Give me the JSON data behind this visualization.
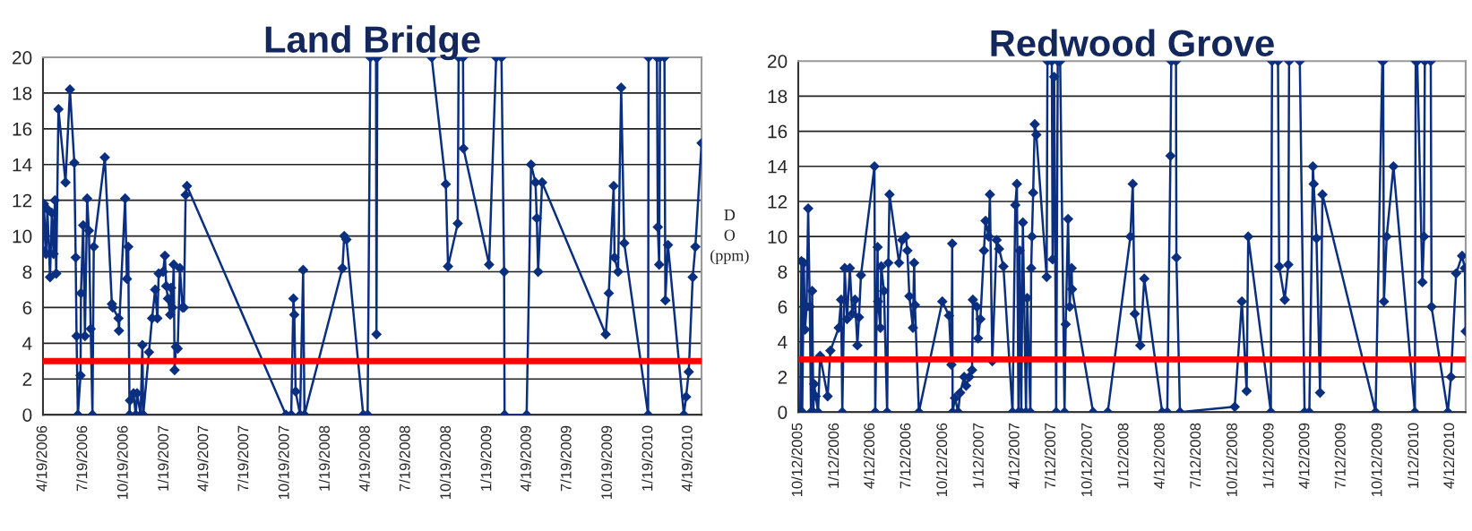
{
  "chart_data": [
    {
      "type": "line",
      "title": "Land Bridge",
      "marker": "diamond",
      "grid": "y",
      "line_style": "solid",
      "xlim": [
        "2006-04-19",
        "2010-05-19"
      ],
      "ylim": [
        0,
        20
      ],
      "yticks": [
        0,
        2,
        4,
        6,
        8,
        10,
        12,
        14,
        16,
        18,
        20
      ],
      "xticks": [
        {
          "value": "2006-04-19",
          "label": "4/19/2006"
        },
        {
          "value": "2006-07-19",
          "label": "7/19/2006"
        },
        {
          "value": "2006-10-19",
          "label": "10/19/2006"
        },
        {
          "value": "2007-01-19",
          "label": "1/19/2007"
        },
        {
          "value": "2007-04-19",
          "label": "4/19/2007"
        },
        {
          "value": "2007-07-19",
          "label": "7/19/2007"
        },
        {
          "value": "2007-10-19",
          "label": "10/19/2007"
        },
        {
          "value": "2008-01-19",
          "label": "1/19/2008"
        },
        {
          "value": "2008-04-19",
          "label": "4/19/2008"
        },
        {
          "value": "2008-07-19",
          "label": "7/19/2008"
        },
        {
          "value": "2008-10-19",
          "label": "10/19/2008"
        },
        {
          "value": "2009-01-19",
          "label": "1/19/2009"
        },
        {
          "value": "2009-04-19",
          "label": "4/19/2009"
        },
        {
          "value": "2009-07-19",
          "label": "7/19/2009"
        },
        {
          "value": "2009-10-19",
          "label": "10/19/2009"
        },
        {
          "value": "2010-01-19",
          "label": "1/19/2010"
        },
        {
          "value": "2010-04-19",
          "label": "4/19/2010"
        }
      ],
      "ref_lines": [
        {
          "axis": "y",
          "value": 3,
          "color": "#ff0000"
        }
      ],
      "x": [
        "2006-04-19",
        "2006-04-21",
        "2006-04-26",
        "2006-04-29",
        "2006-05-05",
        "2006-05-09",
        "2006-05-13",
        "2006-05-16",
        "2006-05-19",
        "2006-05-24",
        "2006-06-09",
        "2006-06-19",
        "2006-06-29",
        "2006-07-02",
        "2006-07-04",
        "2006-07-07",
        "2006-07-13",
        "2006-07-14",
        "2006-07-19",
        "2006-07-23",
        "2006-07-28",
        "2006-08-01",
        "2006-08-05",
        "2006-08-09",
        "2006-08-12",
        "2006-09-06",
        "2006-09-22",
        "2006-09-24",
        "2006-10-07",
        "2006-10-08",
        "2006-10-22",
        "2006-10-26",
        "2006-10-29",
        "2006-11-01",
        "2006-11-02",
        "2006-11-10",
        "2006-11-15",
        "2006-11-18",
        "2006-11-26",
        "2006-11-30",
        "2006-12-02",
        "2006-12-15",
        "2006-12-22",
        "2006-12-29",
        "2007-01-03",
        "2007-01-06",
        "2007-01-16",
        "2007-01-20",
        "2007-01-23",
        "2007-01-27",
        "2007-02-01",
        "2007-02-03",
        "2007-02-06",
        "2007-02-09",
        "2007-02-11",
        "2007-02-14",
        "2007-02-18",
        "2007-02-23",
        "2007-03-01",
        "2007-03-04",
        "2007-03-08",
        "2007-03-11",
        "2007-10-21",
        "2007-11-02",
        "2007-11-07",
        "2007-11-09",
        "2007-11-12",
        "2007-11-22",
        "2007-11-29",
        "2007-12-02",
        "2008-02-26",
        "2008-03-01",
        "2008-03-06",
        "2008-04-13",
        "2008-04-23",
        "2008-04-29",
        "2008-05-05",
        "2008-05-12",
        "2008-05-13",
        "2008-05-15",
        "2008-07-01",
        "2008-09-15",
        "2008-10-17",
        "2008-10-22",
        "2008-11-13",
        "2008-11-15",
        "2008-11-20",
        "2008-11-25",
        "2008-11-26",
        "2009-01-23",
        "2009-02-08",
        "2009-02-14",
        "2009-02-20",
        "2009-02-26",
        "2009-02-27",
        "2009-04-18",
        "2009-04-28",
        "2009-05-08",
        "2009-05-11",
        "2009-05-14",
        "2009-05-23",
        "2009-10-14",
        "2009-10-21",
        "2009-11-01",
        "2009-11-03",
        "2009-11-11",
        "2009-11-18",
        "2009-11-25",
        "2010-01-18",
        "2010-01-19",
        "2010-02-01",
        "2010-02-07",
        "2010-02-09",
        "2010-02-12",
        "2010-02-14",
        "2010-02-19",
        "2010-02-24",
        "2010-02-26",
        "2010-03-04",
        "2010-04-09",
        "2010-04-14",
        "2010-04-20",
        "2010-04-29",
        "2010-05-05",
        "2010-05-19"
      ],
      "series": [
        {
          "color": "#0b2f80",
          "values": [
            9.2,
            11.8,
            9.0,
            11.5,
            7.7,
            11.3,
            9.0,
            12.0,
            7.9,
            17.1,
            13.0,
            18.2,
            14.1,
            8.8,
            4.4,
            0,
            2.2,
            6.8,
            10.6,
            4.4,
            12.1,
            10.3,
            4.8,
            0,
            9.4,
            14.4,
            6.2,
            6.0,
            5.4,
            4.7,
            12.1,
            7.6,
            9.4,
            0,
            0.8,
            1.2,
            0,
            1.2,
            0,
            3.9,
            0,
            3.5,
            5.4,
            7.0,
            5.4,
            7.9,
            8.0,
            8.9,
            7.2,
            6.5,
            5.6,
            7.1,
            6.0,
            8.4,
            2.5,
            3.8,
            3.7,
            8.2,
            6.0,
            6.0,
            12.3,
            12.8,
            0,
            0,
            6.5,
            5.6,
            1.3,
            0,
            8.1,
            0,
            8.2,
            10.0,
            9.8,
            0,
            0,
            20,
            null,
            20,
            4.5,
            20,
            null,
            20,
            12.9,
            8.3,
            10.7,
            20,
            null,
            20,
            14.9,
            8.4,
            20,
            null,
            20,
            8.0,
            0,
            0,
            14.0,
            13.0,
            11.0,
            8.0,
            13.0,
            4.5,
            6.8,
            12.8,
            8.8,
            8.0,
            18.3,
            9.6,
            0,
            20,
            null,
            20,
            10.5,
            8.4,
            20,
            null,
            20,
            6.4,
            9.5,
            0,
            1.0,
            2.4,
            7.7,
            9.4,
            15.2
          ]
        }
      ]
    },
    {
      "type": "line",
      "title": "Redwood Grove",
      "ylabel": "D\nO\n(ppm)",
      "marker": "diamond",
      "grid": "y",
      "line_style": "solid",
      "xlim": [
        "2005-10-12",
        "2010-05-21"
      ],
      "ylim": [
        0,
        20
      ],
      "yticks": [
        0,
        2,
        4,
        6,
        8,
        10,
        12,
        14,
        16,
        18,
        20
      ],
      "xticks": [
        {
          "value": "2005-10-12",
          "label": "10/12/2005"
        },
        {
          "value": "2006-01-12",
          "label": "1/12/2006"
        },
        {
          "value": "2006-04-12",
          "label": "4/12/2006"
        },
        {
          "value": "2006-07-12",
          "label": "7/12/2006"
        },
        {
          "value": "2006-10-12",
          "label": "10/12/2006"
        },
        {
          "value": "2007-01-12",
          "label": "1/12/2007"
        },
        {
          "value": "2007-04-12",
          "label": "4/12/2007"
        },
        {
          "value": "2007-07-12",
          "label": "7/12/2007"
        },
        {
          "value": "2007-10-12",
          "label": "10/12/2007"
        },
        {
          "value": "2008-01-12",
          "label": "1/12/2008"
        },
        {
          "value": "2008-04-12",
          "label": "4/12/2008"
        },
        {
          "value": "2008-07-12",
          "label": "7/12/2008"
        },
        {
          "value": "2008-10-12",
          "label": "10/12/2008"
        },
        {
          "value": "2009-01-12",
          "label": "1/12/2009"
        },
        {
          "value": "2009-04-12",
          "label": "4/12/2009"
        },
        {
          "value": "2009-07-12",
          "label": "7/12/2009"
        },
        {
          "value": "2009-10-12",
          "label": "10/12/2009"
        },
        {
          "value": "2010-01-12",
          "label": "1/12/2010"
        },
        {
          "value": "2010-04-12",
          "label": "4/12/2010"
        }
      ],
      "ref_lines": [
        {
          "axis": "y",
          "value": 3,
          "color": "#ff0000"
        }
      ],
      "x": [
        "2005-10-17",
        "2005-10-20",
        "2005-10-22",
        "2005-10-26",
        "2005-10-29",
        "2005-11-02",
        "2005-11-06",
        "2005-11-10",
        "2005-11-13",
        "2005-11-16",
        "2005-11-19",
        "2005-11-21",
        "2005-11-25",
        "2005-12-01",
        "2005-12-06",
        "2005-12-25",
        "2006-01-01",
        "2006-01-22",
        "2006-01-28",
        "2006-01-31",
        "2006-02-06",
        "2006-02-12",
        "2006-02-19",
        "2006-02-25",
        "2006-03-04",
        "2006-03-10",
        "2006-03-14",
        "2006-03-19",
        "2006-04-22",
        "2006-04-24",
        "2006-04-30",
        "2006-05-01",
        "2006-05-07",
        "2006-05-09",
        "2006-05-16",
        "2006-05-24",
        "2006-05-27",
        "2006-05-30",
        "2006-06-23",
        "2006-07-01",
        "2006-07-10",
        "2006-07-14",
        "2006-07-19",
        "2006-07-28",
        "2006-07-31",
        "2006-08-02",
        "2006-08-12",
        "2006-10-10",
        "2006-10-27",
        "2006-11-02",
        "2006-11-04",
        "2006-11-05",
        "2006-11-11",
        "2006-11-19",
        "2006-11-24",
        "2006-12-04",
        "2006-12-09",
        "2006-12-17",
        "2006-12-24",
        "2006-12-26",
        "2007-01-05",
        "2007-01-08",
        "2007-01-14",
        "2007-01-23",
        "2007-01-27",
        "2007-02-04",
        "2007-02-07",
        "2007-02-13",
        "2007-02-24",
        "2007-03-02",
        "2007-03-13",
        "2007-04-05",
        "2007-04-12",
        "2007-04-16",
        "2007-04-20",
        "2007-04-23",
        "2007-04-27",
        "2007-05-01",
        "2007-05-09",
        "2007-05-12",
        "2007-05-20",
        "2007-05-22",
        "2007-05-24",
        "2007-05-27",
        "2007-05-31",
        "2007-06-04",
        "2007-06-30",
        "2007-07-02",
        "2007-07-08",
        "2007-07-13",
        "2007-07-15",
        "2007-07-19",
        "2007-07-24",
        "2007-07-28",
        "2007-07-31",
        "2007-08-03",
        "2007-08-14",
        "2007-08-17",
        "2007-08-23",
        "2007-08-27",
        "2007-09-01",
        "2007-09-02",
        "2007-10-25",
        "2007-12-01",
        "2008-01-27",
        "2008-02-02",
        "2008-02-07",
        "2008-02-21",
        "2008-03-02",
        "2008-04-16",
        "2008-04-29",
        "2008-05-07",
        "2008-05-09",
        "2008-05-15",
        "2008-05-21",
        "2008-05-22",
        "2008-05-31",
        "2008-10-16",
        "2008-11-03",
        "2008-11-15",
        "2008-11-19",
        "2009-01-15",
        "2009-01-18",
        "2009-01-25",
        "2009-02-02",
        "2009-02-05",
        "2009-02-19",
        "2009-02-28",
        "2009-03-02",
        "2009-03-15",
        "2009-03-29",
        "2009-04-10",
        "2009-04-22",
        "2009-05-01",
        "2009-05-03",
        "2009-05-10",
        "2009-05-19",
        "2009-05-25",
        "2009-10-06",
        "2009-10-23",
        "2009-10-24",
        "2009-10-25",
        "2009-10-27",
        "2009-11-03",
        "2009-11-20",
        "2010-01-13",
        "2010-01-15",
        "2010-01-17",
        "2010-01-19",
        "2010-02-01",
        "2010-02-05",
        "2010-02-07",
        "2010-02-15",
        "2010-02-22",
        "2010-02-24",
        "2010-04-06",
        "2010-04-14",
        "2010-04-27",
        "2010-05-12",
        "2010-05-19",
        "2010-05-21"
      ],
      "series": [
        {
          "color": "#0b2f80",
          "values": [
            0,
            8.6,
            0,
            8.5,
            4.7,
            6.0,
            11.6,
            6.0,
            0,
            6.9,
            0,
            1.6,
            0.9,
            0,
            3.2,
            0.9,
            3.5,
            4.8,
            6.4,
            0,
            8.2,
            5.3,
            8.2,
            5.6,
            6.4,
            3.8,
            5.4,
            7.8,
            14.0,
            0,
            9.4,
            6.3,
            4.8,
            8.3,
            6.9,
            0,
            8.5,
            12.4,
            8.5,
            9.8,
            10.0,
            9.2,
            6.6,
            4.8,
            8.5,
            6.1,
            0,
            6.3,
            5.5,
            2.7,
            9.6,
            0,
            0.8,
            0,
            1.1,
            2.0,
            1.5,
            2.0,
            2.4,
            6.4,
            6.0,
            4.2,
            5.3,
            9.2,
            10.9,
            10.0,
            12.4,
            2.9,
            9.8,
            9.3,
            8.3,
            0,
            11.8,
            13.0,
            0,
            9.2,
            0,
            10.8,
            0,
            6.5,
            0,
            8.2,
            10.0,
            12.5,
            16.4,
            15.8,
            7.7,
            20,
            null,
            20,
            8.7,
            19.1,
            0,
            20,
            null,
            20,
            0,
            5.0,
            11.0,
            6.0,
            8.2,
            7.0,
            0,
            0,
            10.0,
            13.0,
            5.6,
            3.8,
            7.6,
            0,
            0,
            14.6,
            20,
            null,
            20,
            8.8,
            0,
            0.3,
            6.3,
            1.2,
            10.0,
            0,
            20,
            null,
            20,
            8.3,
            6.4,
            8.4,
            20,
            null,
            20,
            0,
            0,
            14.0,
            13.0,
            9.9,
            1.1,
            12.4,
            0,
            20,
            null,
            20,
            6.3,
            10.0,
            14.0,
            0,
            20,
            null,
            20,
            7.4,
            10.0,
            20,
            null,
            20,
            6.0,
            0,
            2.0,
            7.9,
            8.9,
            8.2,
            4.6
          ]
        }
      ]
    }
  ]
}
